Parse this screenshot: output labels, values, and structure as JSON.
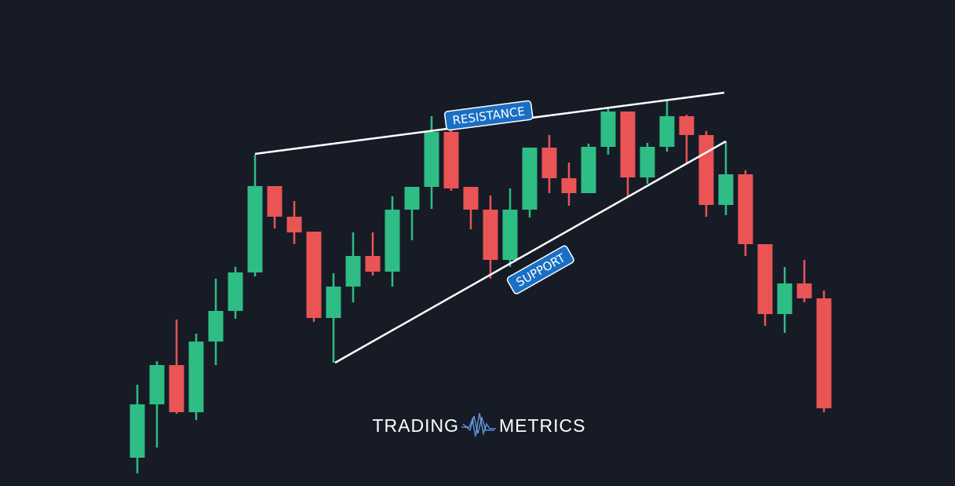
{
  "chart_data": {
    "type": "candlestick",
    "series": [
      {
        "open": [
          36,
          104,
          154,
          94,
          184,
          223,
          272,
          382,
          343,
          324,
          214,
          254,
          293,
          273,
          352,
          381,
          451,
          381,
          352,
          288,
          352,
          431,
          392,
          373,
          432,
          477,
          393,
          432,
          471,
          447,
          358,
          397,
          308,
          219,
          258,
          239
        ],
        "high": [
          129,
          159,
          212,
          194,
          264,
          279,
          422,
          382,
          363,
          324,
          271,
          323,
          323,
          369,
          381,
          471,
          454,
          381,
          370,
          379,
          431,
          447,
          412,
          436,
          482,
          477,
          437,
          492,
          473,
          452,
          439,
          402,
          308,
          279,
          288,
          249
        ],
        "low": [
          16,
          49,
          92,
          84,
          154,
          213,
          267,
          328,
          308,
          209,
          157,
          234,
          268,
          254,
          313,
          353,
          376,
          327,
          264,
          279,
          342,
          373,
          357,
          373,
          422,
          369,
          385,
          426,
          412,
          343,
          345,
          293,
          204,
          195,
          234,
          94
        ],
        "close": [
          104,
          154,
          94,
          184,
          223,
          272,
          382,
          343,
          323,
          214,
          254,
          293,
          273,
          352,
          381,
          451,
          379,
          352,
          288,
          352,
          431,
          392,
          373,
          432,
          477,
          393,
          432,
          471,
          447,
          358,
          397,
          308,
          219,
          258,
          239,
          99
        ],
        "up_color": "#2ebd85",
        "down_color": "#ea5455"
      }
    ],
    "ylim": [
      0,
      619
    ],
    "trend_lines": [
      {
        "label": "RESISTANCE",
        "from": [
          6,
          423
        ],
        "to": [
          29.92,
          501
        ],
        "label_side": "above"
      },
      {
        "label": "SUPPORT",
        "from": [
          10.08,
          157
        ],
        "to": [
          30,
          439
        ],
        "label_side": "below"
      }
    ],
    "brand": {
      "left": "TRADING",
      "right": "METRICS"
    }
  }
}
